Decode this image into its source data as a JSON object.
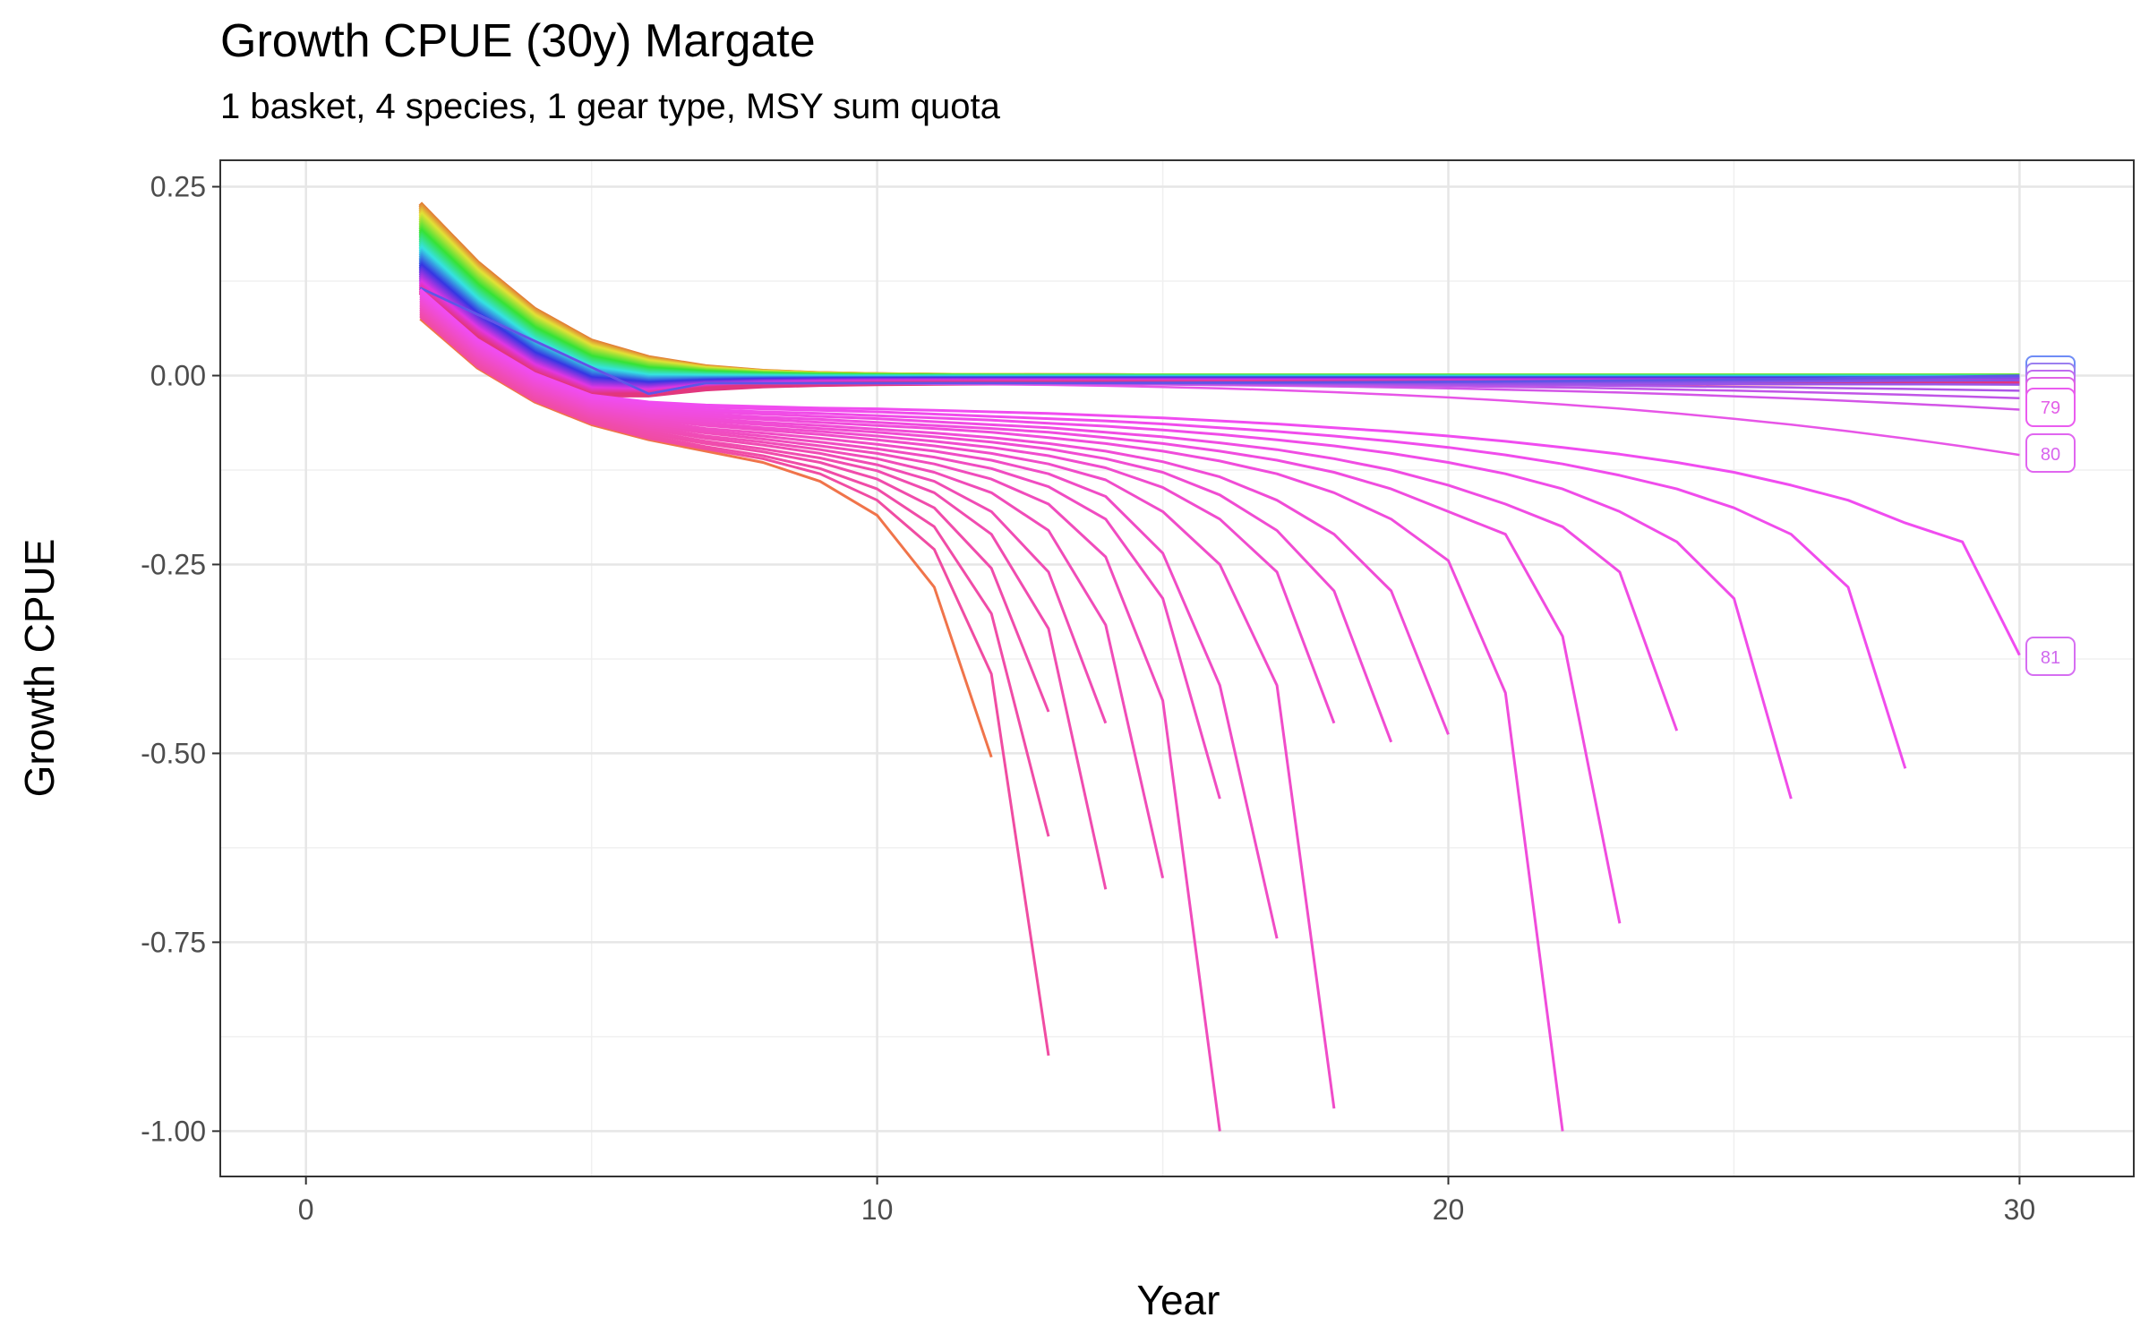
{
  "chart_data": {
    "type": "line",
    "title": "Growth CPUE (30y) Margate",
    "subtitle": "1 basket, 4 species, 1 gear type, MSY sum quota",
    "xlabel": "Year",
    "ylabel": "Growth CPUE",
    "xlim": [
      -1.5,
      32
    ],
    "ylim": [
      -1.06,
      0.285
    ],
    "x_ticks": [
      "0",
      "10",
      "20",
      "30"
    ],
    "x_tick_values": [
      0,
      10,
      20,
      30
    ],
    "y_ticks": [
      "0.25",
      "0.00",
      "-0.25",
      "-0.50",
      "-0.75",
      "-1.00"
    ],
    "y_tick_values": [
      0.25,
      0,
      -0.25,
      -0.5,
      -0.75,
      -1.0
    ],
    "grid": true,
    "legend": "none",
    "line_labels": [
      "79",
      "80",
      "81"
    ],
    "collapsing_series": [
      {
        "x": [
          2,
          3,
          4,
          5,
          6,
          7,
          8,
          9,
          10,
          11,
          12
        ],
        "y": [
          0.075,
          0.01,
          -0.035,
          -0.065,
          -0.085,
          -0.1,
          -0.115,
          -0.14,
          -0.185,
          -0.28,
          -0.505
        ]
      },
      {
        "x": [
          2,
          3,
          4,
          5,
          6,
          7,
          8,
          9,
          10,
          11,
          12,
          13
        ],
        "y": [
          0.078,
          0.012,
          -0.033,
          -0.063,
          -0.083,
          -0.097,
          -0.11,
          -0.13,
          -0.165,
          -0.23,
          -0.395,
          -0.9
        ]
      },
      {
        "x": [
          2,
          3,
          4,
          5,
          6,
          7,
          8,
          9,
          10,
          11,
          12,
          13
        ],
        "y": [
          0.08,
          0.014,
          -0.031,
          -0.061,
          -0.08,
          -0.094,
          -0.106,
          -0.123,
          -0.15,
          -0.2,
          -0.315,
          -0.61
        ]
      },
      {
        "x": [
          2,
          3,
          4,
          5,
          6,
          7,
          8,
          9,
          10,
          11,
          12,
          13
        ],
        "y": [
          0.082,
          0.016,
          -0.029,
          -0.058,
          -0.077,
          -0.09,
          -0.101,
          -0.115,
          -0.137,
          -0.175,
          -0.255,
          -0.445
        ]
      },
      {
        "x": [
          2,
          3,
          4,
          5,
          6,
          7,
          8,
          9,
          10,
          11,
          12,
          13,
          14
        ],
        "y": [
          0.084,
          0.018,
          -0.027,
          -0.056,
          -0.074,
          -0.087,
          -0.097,
          -0.109,
          -0.126,
          -0.155,
          -0.21,
          -0.335,
          -0.68
        ]
      },
      {
        "x": [
          2,
          3,
          4,
          5,
          6,
          7,
          8,
          9,
          10,
          11,
          12,
          13,
          14
        ],
        "y": [
          0.086,
          0.02,
          -0.025,
          -0.054,
          -0.071,
          -0.083,
          -0.092,
          -0.103,
          -0.118,
          -0.14,
          -0.18,
          -0.26,
          -0.46
        ]
      },
      {
        "x": [
          2,
          3,
          4,
          5,
          6,
          7,
          8,
          9,
          10,
          11,
          12,
          13,
          14,
          15
        ],
        "y": [
          0.088,
          0.022,
          -0.023,
          -0.052,
          -0.068,
          -0.08,
          -0.088,
          -0.098,
          -0.11,
          -0.128,
          -0.155,
          -0.205,
          -0.33,
          -0.665
        ]
      },
      {
        "x": [
          2,
          3,
          4,
          5,
          6,
          7,
          8,
          9,
          10,
          11,
          12,
          13,
          14,
          15,
          16
        ],
        "y": [
          0.09,
          0.024,
          -0.021,
          -0.05,
          -0.066,
          -0.076,
          -0.084,
          -0.093,
          -0.103,
          -0.117,
          -0.137,
          -0.17,
          -0.24,
          -0.43,
          -1.0
        ]
      },
      {
        "x": [
          2,
          3,
          4,
          5,
          6,
          7,
          8,
          9,
          10,
          11,
          12,
          13,
          14,
          15,
          16
        ],
        "y": [
          0.092,
          0.026,
          -0.019,
          -0.048,
          -0.063,
          -0.073,
          -0.08,
          -0.088,
          -0.097,
          -0.108,
          -0.123,
          -0.147,
          -0.19,
          -0.295,
          -0.56
        ]
      },
      {
        "x": [
          2,
          3,
          4,
          5,
          6,
          7,
          8,
          9,
          10,
          11,
          12,
          13,
          14,
          15,
          16,
          17
        ],
        "y": [
          0.094,
          0.028,
          -0.017,
          -0.046,
          -0.06,
          -0.07,
          -0.076,
          -0.083,
          -0.091,
          -0.1,
          -0.112,
          -0.13,
          -0.16,
          -0.235,
          -0.41,
          -0.745
        ]
      },
      {
        "x": [
          2,
          3,
          4,
          5,
          6,
          7,
          8,
          9,
          10,
          11,
          12,
          13,
          14,
          15,
          16,
          17,
          18
        ],
        "y": [
          0.096,
          0.03,
          -0.015,
          -0.044,
          -0.058,
          -0.066,
          -0.072,
          -0.078,
          -0.085,
          -0.093,
          -0.103,
          -0.117,
          -0.138,
          -0.18,
          -0.25,
          -0.41,
          -0.97
        ]
      },
      {
        "x": [
          2,
          3,
          4,
          5,
          6,
          7,
          8,
          9,
          10,
          11,
          12,
          13,
          14,
          15,
          16,
          17,
          18
        ],
        "y": [
          0.098,
          0.032,
          -0.013,
          -0.042,
          -0.055,
          -0.063,
          -0.069,
          -0.074,
          -0.08,
          -0.087,
          -0.095,
          -0.106,
          -0.122,
          -0.148,
          -0.19,
          -0.26,
          -0.46
        ]
      },
      {
        "x": [
          2,
          3,
          4,
          5,
          6,
          7,
          8,
          9,
          10,
          11,
          12,
          13,
          14,
          15,
          16,
          17,
          18,
          19
        ],
        "y": [
          0.1,
          0.034,
          -0.011,
          -0.04,
          -0.053,
          -0.06,
          -0.065,
          -0.07,
          -0.075,
          -0.081,
          -0.088,
          -0.097,
          -0.11,
          -0.128,
          -0.158,
          -0.205,
          -0.285,
          -0.485
        ]
      },
      {
        "x": [
          2,
          3,
          4,
          5,
          6,
          7,
          8,
          9,
          10,
          11,
          12,
          13,
          14,
          15,
          16,
          17,
          18,
          19,
          20
        ],
        "y": [
          0.102,
          0.036,
          -0.009,
          -0.038,
          -0.05,
          -0.057,
          -0.062,
          -0.066,
          -0.071,
          -0.076,
          -0.082,
          -0.09,
          -0.1,
          -0.114,
          -0.134,
          -0.165,
          -0.21,
          -0.285,
          -0.475
        ]
      },
      {
        "x": [
          2,
          3,
          4,
          5,
          6,
          7,
          8,
          9,
          10,
          11,
          12,
          13,
          14,
          15,
          16,
          17,
          18,
          19,
          20,
          21,
          22
        ],
        "y": [
          0.104,
          0.038,
          -0.007,
          -0.036,
          -0.048,
          -0.054,
          -0.058,
          -0.062,
          -0.066,
          -0.07,
          -0.075,
          -0.082,
          -0.09,
          -0.1,
          -0.113,
          -0.13,
          -0.155,
          -0.19,
          -0.245,
          -0.42,
          -1.0
        ]
      },
      {
        "x": [
          2,
          3,
          4,
          5,
          6,
          7,
          8,
          9,
          10,
          11,
          12,
          13,
          14,
          15,
          16,
          17,
          18,
          19,
          20,
          21,
          22,
          23
        ],
        "y": [
          0.106,
          0.04,
          -0.005,
          -0.034,
          -0.045,
          -0.051,
          -0.055,
          -0.058,
          -0.062,
          -0.066,
          -0.07,
          -0.075,
          -0.082,
          -0.09,
          -0.1,
          -0.112,
          -0.128,
          -0.15,
          -0.18,
          -0.21,
          -0.345,
          -0.725
        ]
      },
      {
        "x": [
          2,
          3,
          4,
          5,
          6,
          7,
          8,
          9,
          10,
          11,
          12,
          13,
          14,
          15,
          16,
          17,
          18,
          19,
          20,
          21,
          22,
          23,
          24
        ],
        "y": [
          0.108,
          0.042,
          -0.003,
          -0.032,
          -0.043,
          -0.048,
          -0.051,
          -0.054,
          -0.057,
          -0.061,
          -0.065,
          -0.069,
          -0.075,
          -0.081,
          -0.089,
          -0.098,
          -0.11,
          -0.125,
          -0.145,
          -0.17,
          -0.2,
          -0.26,
          -0.47
        ]
      },
      {
        "x": [
          2,
          3,
          4,
          5,
          6,
          7,
          8,
          9,
          10,
          11,
          12,
          13,
          14,
          15,
          16,
          17,
          18,
          19,
          20,
          21,
          22,
          23,
          24,
          25,
          26
        ],
        "y": [
          0.11,
          0.044,
          -0.001,
          -0.03,
          -0.04,
          -0.045,
          -0.048,
          -0.05,
          -0.053,
          -0.056,
          -0.059,
          -0.063,
          -0.067,
          -0.072,
          -0.078,
          -0.085,
          -0.093,
          -0.103,
          -0.115,
          -0.13,
          -0.15,
          -0.18,
          -0.22,
          -0.295,
          -0.56
        ]
      },
      {
        "x": [
          2,
          3,
          4,
          5,
          6,
          7,
          8,
          9,
          10,
          11,
          12,
          13,
          14,
          15,
          16,
          17,
          18,
          19,
          20,
          21,
          22,
          23,
          24,
          25,
          26,
          27,
          28
        ],
        "y": [
          0.112,
          0.046,
          0.001,
          -0.028,
          -0.038,
          -0.042,
          -0.044,
          -0.046,
          -0.048,
          -0.051,
          -0.054,
          -0.057,
          -0.06,
          -0.064,
          -0.069,
          -0.074,
          -0.08,
          -0.087,
          -0.095,
          -0.105,
          -0.117,
          -0.132,
          -0.15,
          -0.175,
          -0.21,
          -0.28,
          -0.52
        ]
      },
      {
        "x": [
          2,
          3,
          4,
          5,
          6,
          7,
          8,
          9,
          10,
          11,
          12,
          13,
          14,
          15,
          16,
          17,
          18,
          19,
          20,
          21,
          22,
          23,
          24,
          25,
          26,
          27,
          28,
          29,
          30
        ],
        "y": [
          0.114,
          0.048,
          0.003,
          -0.026,
          -0.035,
          -0.039,
          -0.041,
          -0.043,
          -0.044,
          -0.046,
          -0.048,
          -0.05,
          -0.053,
          -0.056,
          -0.06,
          -0.064,
          -0.069,
          -0.074,
          -0.08,
          -0.087,
          -0.095,
          -0.104,
          -0.115,
          -0.128,
          -0.145,
          -0.165,
          -0.195,
          -0.22,
          -0.37
        ]
      }
    ],
    "flat_series_end_values": [
      -0.105,
      -0.045,
      -0.03,
      -0.02,
      -0.012,
      -0.006,
      -0.002,
      0.0
    ],
    "fan_series_count": 60
  },
  "line_labels": {
    "l79": "79",
    "l80": "80",
    "l81": "81"
  }
}
